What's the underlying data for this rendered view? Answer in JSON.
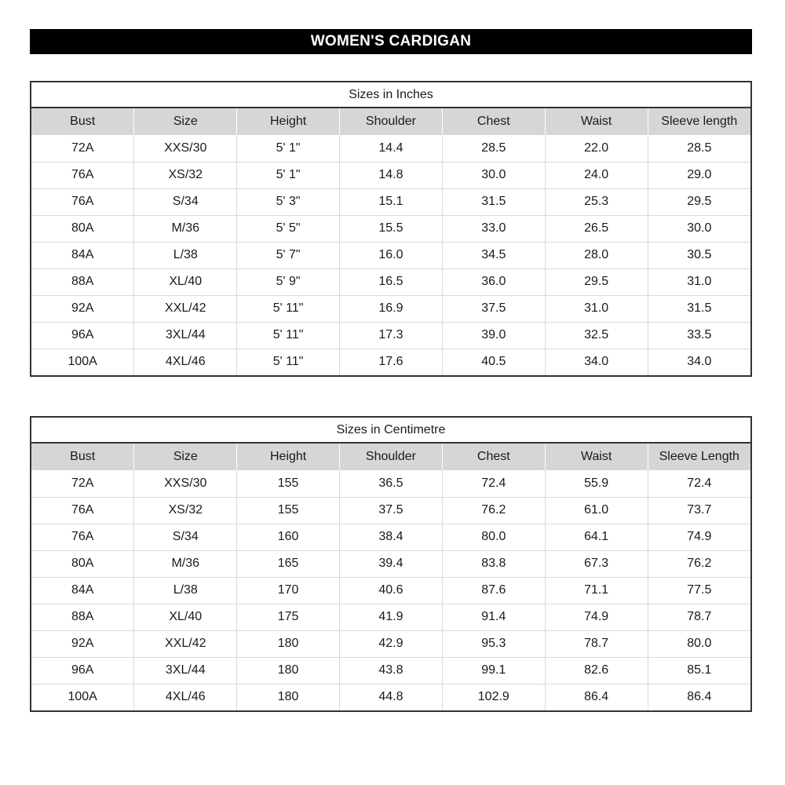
{
  "title": "WOMEN'S CARDIGAN",
  "colors": {
    "title_bar_bg": "#000000",
    "title_bar_text": "#ffffff",
    "header_bg": "#d6d6d6",
    "border_dark": "#333333",
    "grid_light": "#d9d9d9"
  },
  "tables": [
    {
      "caption": "Sizes in Inches",
      "columns": [
        "Bust",
        "Size",
        "Height",
        "Shoulder",
        "Chest",
        "Waist",
        "Sleeve length"
      ],
      "rows": [
        [
          "72A",
          "XXS/30",
          "5' 1\"",
          "14.4",
          "28.5",
          "22.0",
          "28.5"
        ],
        [
          "76A",
          "XS/32",
          "5' 1\"",
          "14.8",
          "30.0",
          "24.0",
          "29.0"
        ],
        [
          "76A",
          "S/34",
          "5' 3\"",
          "15.1",
          "31.5",
          "25.3",
          "29.5"
        ],
        [
          "80A",
          "M/36",
          "5' 5\"",
          "15.5",
          "33.0",
          "26.5",
          "30.0"
        ],
        [
          "84A",
          "L/38",
          "5' 7\"",
          "16.0",
          "34.5",
          "28.0",
          "30.5"
        ],
        [
          "88A",
          "XL/40",
          "5' 9\"",
          "16.5",
          "36.0",
          "29.5",
          "31.0"
        ],
        [
          "92A",
          "XXL/42",
          "5' 11\"",
          "16.9",
          "37.5",
          "31.0",
          "31.5"
        ],
        [
          "96A",
          "3XL/44",
          "5' 11\"",
          "17.3",
          "39.0",
          "32.5",
          "33.5"
        ],
        [
          "100A",
          "4XL/46",
          "5' 11\"",
          "17.6",
          "40.5",
          "34.0",
          "34.0"
        ]
      ]
    },
    {
      "caption": "Sizes in Centimetre",
      "columns": [
        "Bust",
        "Size",
        "Height",
        "Shoulder",
        "Chest",
        "Waist",
        "Sleeve Length"
      ],
      "rows": [
        [
          "72A",
          "XXS/30",
          "155",
          "36.5",
          "72.4",
          "55.9",
          "72.4"
        ],
        [
          "76A",
          "XS/32",
          "155",
          "37.5",
          "76.2",
          "61.0",
          "73.7"
        ],
        [
          "76A",
          "S/34",
          "160",
          "38.4",
          "80.0",
          "64.1",
          "74.9"
        ],
        [
          "80A",
          "M/36",
          "165",
          "39.4",
          "83.8",
          "67.3",
          "76.2"
        ],
        [
          "84A",
          "L/38",
          "170",
          "40.6",
          "87.6",
          "71.1",
          "77.5"
        ],
        [
          "88A",
          "XL/40",
          "175",
          "41.9",
          "91.4",
          "74.9",
          "78.7"
        ],
        [
          "92A",
          "XXL/42",
          "180",
          "42.9",
          "95.3",
          "78.7",
          "80.0"
        ],
        [
          "96A",
          "3XL/44",
          "180",
          "43.8",
          "99.1",
          "82.6",
          "85.1"
        ],
        [
          "100A",
          "4XL/46",
          "180",
          "44.8",
          "102.9",
          "86.4",
          "86.4"
        ]
      ]
    }
  ],
  "chart_data": [
    {
      "type": "table",
      "title": "Sizes in Inches",
      "columns": [
        "Bust",
        "Size",
        "Height",
        "Shoulder",
        "Chest",
        "Waist",
        "Sleeve length"
      ],
      "rows": [
        [
          "72A",
          "XXS/30",
          "5' 1\"",
          14.4,
          28.5,
          22.0,
          28.5
        ],
        [
          "76A",
          "XS/32",
          "5' 1\"",
          14.8,
          30.0,
          24.0,
          29.0
        ],
        [
          "76A",
          "S/34",
          "5' 3\"",
          15.1,
          31.5,
          25.3,
          29.5
        ],
        [
          "80A",
          "M/36",
          "5' 5\"",
          15.5,
          33.0,
          26.5,
          30.0
        ],
        [
          "84A",
          "L/38",
          "5' 7\"",
          16.0,
          34.5,
          28.0,
          30.5
        ],
        [
          "88A",
          "XL/40",
          "5' 9\"",
          16.5,
          36.0,
          29.5,
          31.0
        ],
        [
          "92A",
          "XXL/42",
          "5' 11\"",
          16.9,
          37.5,
          31.0,
          31.5
        ],
        [
          "96A",
          "3XL/44",
          "5' 11\"",
          17.3,
          39.0,
          32.5,
          33.5
        ],
        [
          "100A",
          "4XL/46",
          "5' 11\"",
          17.6,
          40.5,
          34.0,
          34.0
        ]
      ]
    },
    {
      "type": "table",
      "title": "Sizes in Centimetre",
      "columns": [
        "Bust",
        "Size",
        "Height",
        "Shoulder",
        "Chest",
        "Waist",
        "Sleeve Length"
      ],
      "rows": [
        [
          "72A",
          "XXS/30",
          155,
          36.5,
          72.4,
          55.9,
          72.4
        ],
        [
          "76A",
          "XS/32",
          155,
          37.5,
          76.2,
          61.0,
          73.7
        ],
        [
          "76A",
          "S/34",
          160,
          38.4,
          80.0,
          64.1,
          74.9
        ],
        [
          "80A",
          "M/36",
          165,
          39.4,
          83.8,
          67.3,
          76.2
        ],
        [
          "84A",
          "L/38",
          170,
          40.6,
          87.6,
          71.1,
          77.5
        ],
        [
          "88A",
          "XL/40",
          175,
          41.9,
          91.4,
          74.9,
          78.7
        ],
        [
          "92A",
          "XXL/42",
          180,
          42.9,
          95.3,
          78.7,
          80.0
        ],
        [
          "96A",
          "3XL/44",
          180,
          43.8,
          99.1,
          82.6,
          85.1
        ],
        [
          "100A",
          "4XL/46",
          180,
          44.8,
          102.9,
          86.4,
          86.4
        ]
      ]
    }
  ]
}
